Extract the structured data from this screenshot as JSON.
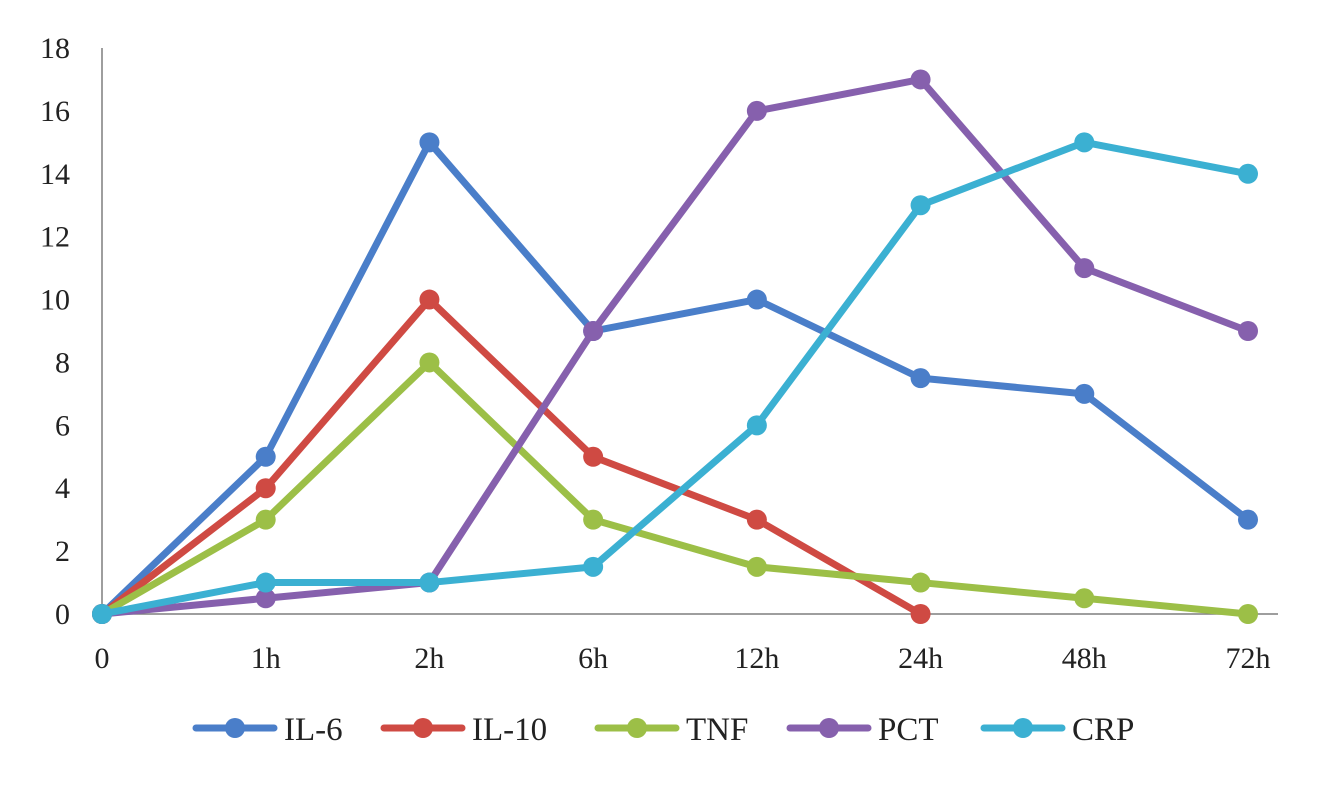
{
  "chart_data": {
    "type": "line",
    "title": "",
    "xlabel": "",
    "ylabel": "",
    "categories": [
      "0",
      "1h",
      "2h",
      "6h",
      "12h",
      "24h",
      "48h",
      "72h"
    ],
    "ylim": [
      0,
      18
    ],
    "yticks": [
      0,
      2,
      4,
      6,
      8,
      10,
      12,
      14,
      16,
      18
    ],
    "grid": false,
    "legend_position": "bottom",
    "series": [
      {
        "name": "IL-6",
        "color": "#4a7ec9",
        "values": [
          0,
          5,
          15,
          9,
          10,
          7.5,
          7,
          3
        ]
      },
      {
        "name": "IL-10",
        "color": "#cf4a43",
        "values": [
          0,
          4,
          10,
          5,
          3,
          0,
          null,
          null
        ]
      },
      {
        "name": "TNF",
        "color": "#9cbf47",
        "values": [
          0,
          3,
          8,
          3,
          1.5,
          1,
          0.5,
          0
        ]
      },
      {
        "name": "PCT",
        "color": "#8660ad",
        "values": [
          0,
          0.5,
          1,
          9,
          16,
          17,
          11,
          9
        ]
      },
      {
        "name": "CRP",
        "color": "#3bb0d2",
        "values": [
          0,
          1,
          1,
          1.5,
          6,
          13,
          15,
          14
        ]
      }
    ]
  }
}
